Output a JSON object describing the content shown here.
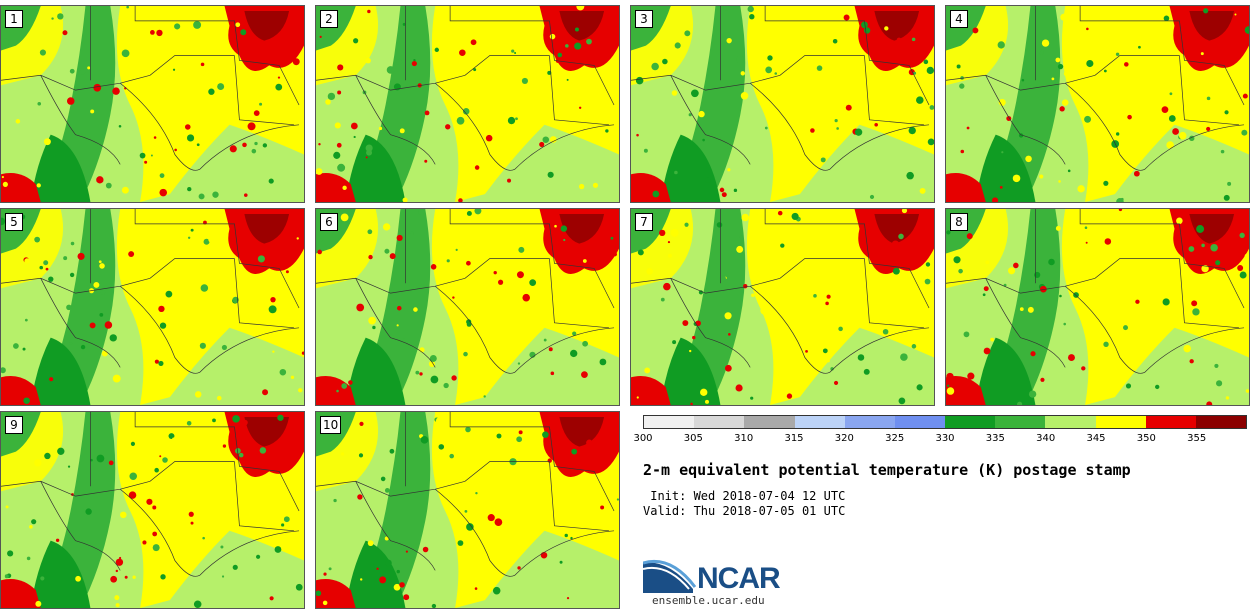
{
  "panels": [
    {
      "label": "1"
    },
    {
      "label": "2"
    },
    {
      "label": "3"
    },
    {
      "label": "4"
    },
    {
      "label": "5"
    },
    {
      "label": "6"
    },
    {
      "label": "7"
    },
    {
      "label": "8"
    },
    {
      "label": "9"
    },
    {
      "label": "10"
    }
  ],
  "colorbar": {
    "colors": [
      "#f0f0f0",
      "#d8d8d8",
      "#a9a9a9",
      "#bcd3f7",
      "#8aa6f0",
      "#6f8ff0",
      "#109c23",
      "#3bb33b",
      "#b6f06a",
      "#ffff00",
      "#e60000",
      "#8b0000"
    ],
    "ticks": [
      "300",
      "305",
      "310",
      "315",
      "320",
      "325",
      "330",
      "335",
      "340",
      "345",
      "350",
      "355"
    ]
  },
  "title": "2-m equivalent potential temperature (K) postage stamp",
  "init_text": " Init: Wed 2018-07-04 12 UTC",
  "valid_text": "Valid: Thu 2018-07-05 01 UTC",
  "logo_text": "NCAR",
  "site_text": "ensemble.ucar.edu"
}
